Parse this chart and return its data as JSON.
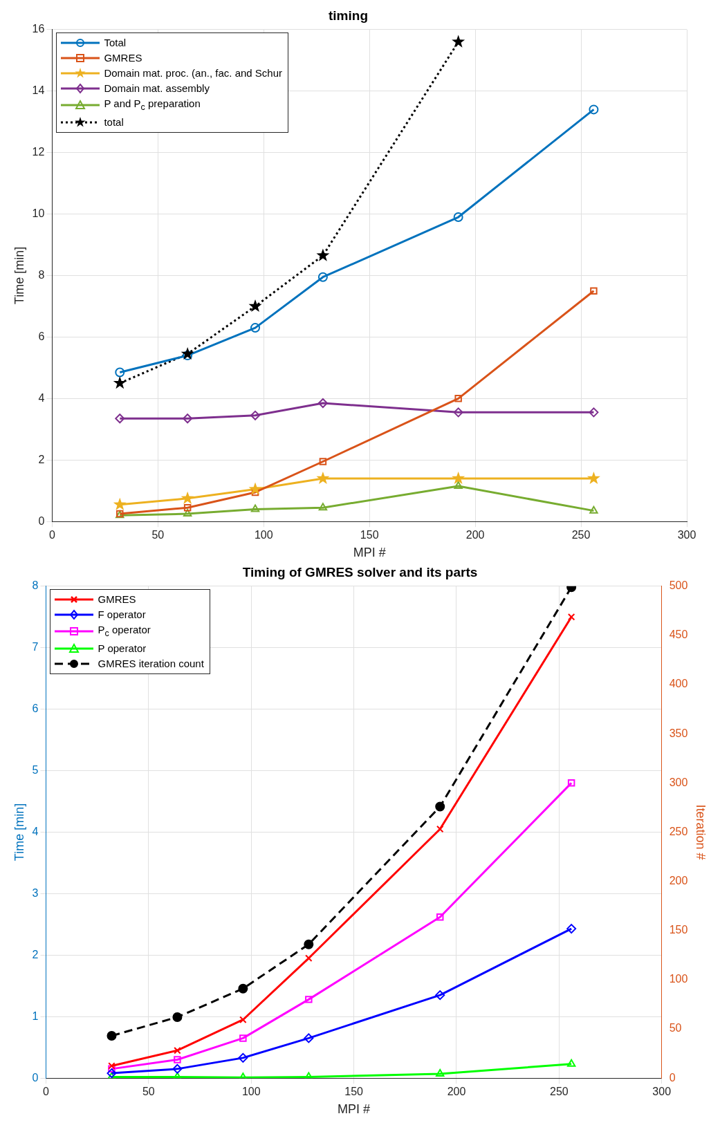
{
  "chart_data": [
    {
      "type": "line",
      "title": "timing",
      "xlabel": "MPI #",
      "ylabel": "Time [min]",
      "x": [
        32,
        64,
        96,
        128,
        192,
        256
      ],
      "xlim": [
        0,
        300
      ],
      "xticks": [
        0,
        50,
        100,
        150,
        200,
        250,
        300
      ],
      "ylim": [
        0,
        16
      ],
      "yticks": [
        0,
        2,
        4,
        6,
        8,
        10,
        12,
        14,
        16
      ],
      "grid": true,
      "legend": "top left",
      "series": [
        {
          "name": "Total",
          "color": "#0072bd",
          "marker": "circle",
          "values": [
            4.85,
            5.4,
            6.3,
            7.95,
            9.9,
            13.4
          ]
        },
        {
          "name": "GMRES",
          "color": "#d95319",
          "marker": "square",
          "values": [
            0.25,
            0.45,
            0.95,
            1.95,
            4.0,
            7.5
          ]
        },
        {
          "name": "Domain mat. proc. (an., fac. and Schur",
          "color": "#edb120",
          "marker": "star",
          "values": [
            0.55,
            0.75,
            1.05,
            1.4,
            1.4,
            1.4
          ]
        },
        {
          "name": "Domain mat. assembly",
          "color": "#7e2f8e",
          "marker": "diamond",
          "values": [
            3.35,
            3.35,
            3.45,
            3.85,
            3.55,
            3.55
          ]
        },
        {
          "name": "P and P$_{c}$ preparation",
          "color": "#77ac30",
          "marker": "triangle",
          "values": [
            0.2,
            0.25,
            0.4,
            0.45,
            1.15,
            0.35
          ]
        },
        {
          "name": "total",
          "color": "#000000",
          "marker": "star",
          "line_style": "dotted",
          "values": [
            4.5,
            5.45,
            7.0,
            8.65,
            15.6,
            null
          ]
        }
      ]
    },
    {
      "type": "line",
      "title": "Timing of GMRES solver and its parts",
      "xlabel": "MPI #",
      "ylabel": "Time [min]",
      "y2label": "Iteration #",
      "x": [
        32,
        64,
        96,
        128,
        192,
        256
      ],
      "xlim": [
        0,
        300
      ],
      "xticks": [
        0,
        50,
        100,
        150,
        200,
        250,
        300
      ],
      "ylim": [
        0,
        8
      ],
      "yticks": [
        0,
        1,
        2,
        3,
        4,
        5,
        6,
        7,
        8
      ],
      "y2lim": [
        0,
        500
      ],
      "y2ticks": [
        0,
        50,
        100,
        150,
        200,
        250,
        300,
        350,
        400,
        450,
        500
      ],
      "grid": true,
      "legend": "top left",
      "series": [
        {
          "name": "GMRES",
          "color": "#ff0000",
          "marker": "cross",
          "values": [
            0.2,
            0.45,
            0.95,
            1.95,
            4.05,
            7.5
          ]
        },
        {
          "name": "F operator",
          "color": "#0000ff",
          "marker": "diamond",
          "values": [
            0.08,
            0.15,
            0.33,
            0.65,
            1.35,
            2.43
          ]
        },
        {
          "name": "P$_{c}$ operator",
          "color": "#ff00ff",
          "marker": "square",
          "values": [
            0.15,
            0.3,
            0.65,
            1.28,
            2.62,
            4.8
          ]
        },
        {
          "name": "P operator",
          "color": "#00ff00",
          "marker": "triangle",
          "values": [
            0.02,
            0.02,
            0.01,
            0.02,
            0.07,
            0.23
          ]
        },
        {
          "name": "GMRES iteration count",
          "color": "#000000",
          "marker": "circle",
          "line_style": "dashed",
          "axis": "y2",
          "values": [
            43,
            62,
            91,
            136,
            276,
            499
          ]
        }
      ]
    }
  ]
}
